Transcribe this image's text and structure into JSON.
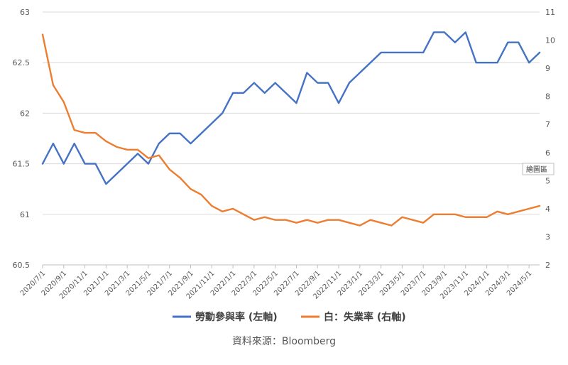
{
  "chart_data": {
    "type": "line",
    "title": "",
    "xlabel": "",
    "x": [
      "2020/7/1",
      "2020/8/1",
      "2020/9/1",
      "2020/10/1",
      "2020/11/1",
      "2020/12/1",
      "2021/1/1",
      "2021/2/1",
      "2021/3/1",
      "2021/4/1",
      "2021/5/1",
      "2021/6/1",
      "2021/7/1",
      "2021/8/1",
      "2021/9/1",
      "2021/10/1",
      "2021/11/1",
      "2021/12/1",
      "2022/1/1",
      "2022/2/1",
      "2022/3/1",
      "2022/4/1",
      "2022/5/1",
      "2022/6/1",
      "2022/7/1",
      "2022/8/1",
      "2022/9/1",
      "2022/10/1",
      "2022/11/1",
      "2022/12/1",
      "2023/1/1",
      "2023/2/1",
      "2023/3/1",
      "2023/4/1",
      "2023/5/1",
      "2023/6/1",
      "2023/7/1",
      "2023/8/1",
      "2023/9/1",
      "2023/10/1",
      "2023/11/1",
      "2023/12/1",
      "2024/1/1",
      "2024/2/1",
      "2024/3/1",
      "2024/4/1",
      "2024/5/1",
      "2024/6/1"
    ],
    "x_tick_labels": [
      "2020/7/1",
      "2020/9/1",
      "2020/11/1",
      "2021/1/1",
      "2021/3/1",
      "2021/5/1",
      "2021/7/1",
      "2021/9/1",
      "2021/11/1",
      "2022/1/1",
      "2022/3/1",
      "2022/5/1",
      "2022/7/1",
      "2022/9/1",
      "2022/11/1",
      "2023/1/1",
      "2023/3/1",
      "2023/5/1",
      "2023/7/1",
      "2023/9/1",
      "2023/11/1",
      "2024/1/1",
      "2024/3/1",
      "2024/5/1"
    ],
    "y_left": {
      "ylim": [
        60.5,
        63
      ],
      "ticks": [
        "60.5",
        "61",
        "61.5",
        "62",
        "62.5",
        "63"
      ]
    },
    "y_right": {
      "ylim": [
        2,
        11
      ],
      "ticks": [
        "2",
        "3",
        "4",
        "5",
        "6",
        "7",
        "8",
        "9",
        "10",
        "11"
      ]
    },
    "grid": "horizontal",
    "legend_position": "bottom",
    "series": [
      {
        "name": "勞動參與率 (左軸)",
        "axis": "left",
        "color": "#4472c4",
        "values": [
          61.5,
          61.7,
          61.5,
          61.7,
          61.5,
          61.5,
          61.3,
          61.4,
          61.5,
          61.6,
          61.5,
          61.7,
          61.8,
          61.8,
          61.7,
          61.8,
          61.9,
          62.0,
          62.2,
          62.2,
          62.3,
          62.2,
          62.3,
          62.2,
          62.1,
          62.4,
          62.3,
          62.3,
          62.1,
          62.3,
          62.4,
          62.5,
          62.6,
          62.6,
          62.6,
          62.6,
          62.6,
          62.8,
          62.8,
          62.7,
          62.8,
          62.5,
          62.5,
          62.5,
          62.7,
          62.7,
          62.5,
          62.6
        ]
      },
      {
        "name": "白：失業率 (右軸)",
        "axis": "right",
        "color": "#ed7d31",
        "values": [
          10.2,
          8.4,
          7.8,
          6.8,
          6.7,
          6.7,
          6.4,
          6.2,
          6.1,
          6.1,
          5.8,
          5.9,
          5.4,
          5.1,
          4.7,
          4.5,
          4.1,
          3.9,
          4.0,
          3.8,
          3.6,
          3.7,
          3.6,
          3.6,
          3.5,
          3.6,
          3.5,
          3.6,
          3.6,
          3.5,
          3.4,
          3.6,
          3.5,
          3.4,
          3.7,
          3.6,
          3.5,
          3.8,
          3.8,
          3.8,
          3.7,
          3.7,
          3.7,
          3.9,
          3.8,
          3.9,
          4.0,
          4.1
        ]
      }
    ]
  },
  "plot_area_tag": "繪圖區",
  "source_text": "資料來源：Bloomberg"
}
